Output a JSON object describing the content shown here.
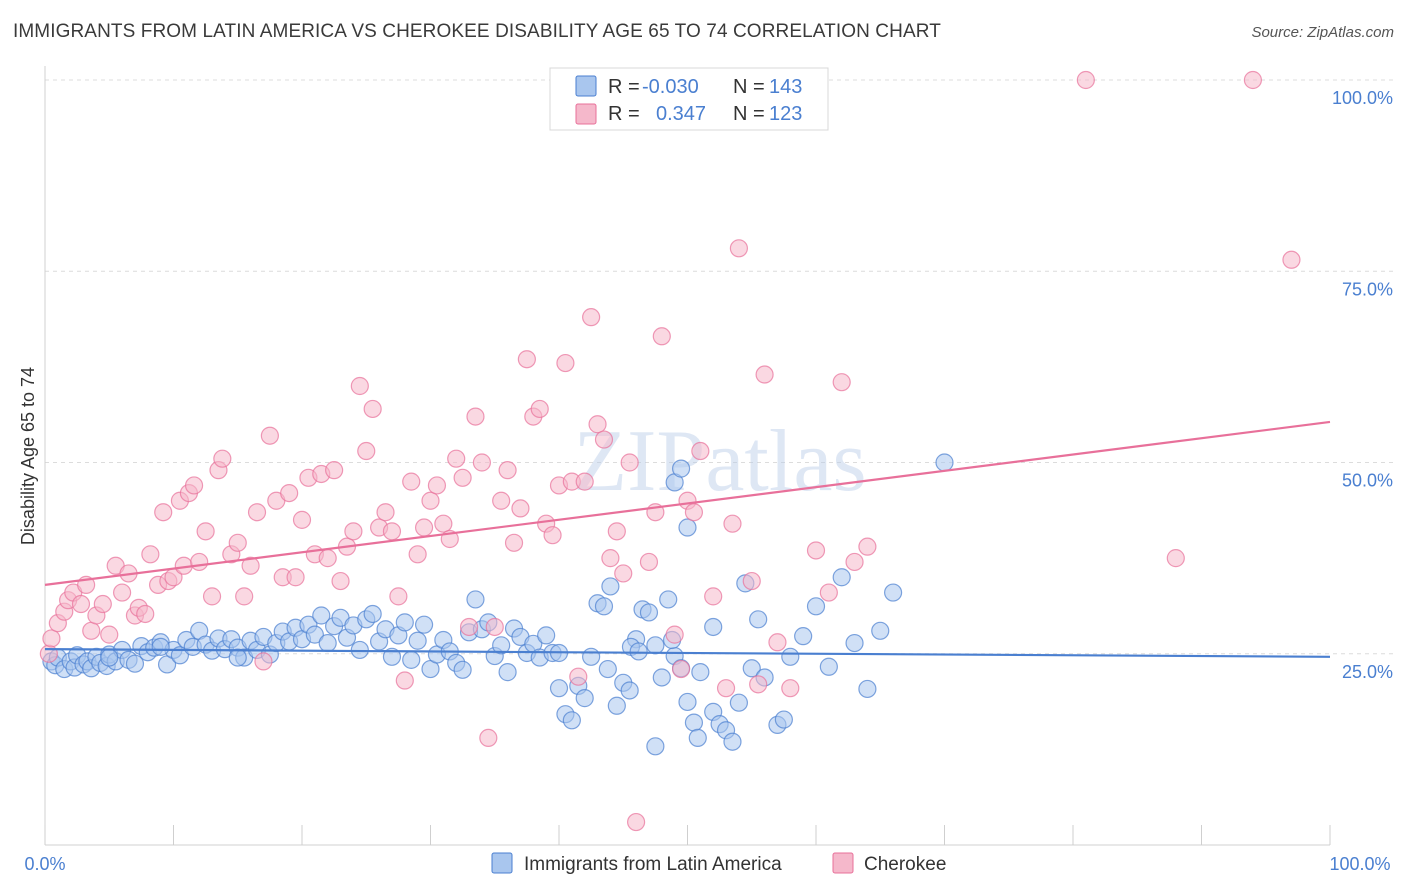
{
  "title": "IMMIGRANTS FROM LATIN AMERICA VS CHEROKEE DISABILITY AGE 65 TO 74 CORRELATION CHART",
  "source": "Source: ZipAtlas.com",
  "watermark": "ZIPatlas",
  "colors": {
    "blue": "#4a7fd0",
    "blue_fill": "#a9c6ee",
    "pink": "#e8709a",
    "pink_fill": "#f5b8cb",
    "grid": "#dddddd",
    "axis_text": "#4a7fd0"
  },
  "legend": {
    "rows": [
      {
        "r_label": "R =",
        "r_value": "-0.030",
        "n_label": "N =",
        "n_value": "143"
      },
      {
        "r_label": "R =",
        "r_value": "0.347",
        "n_label": "N =",
        "n_value": "123"
      }
    ]
  },
  "chart_data": {
    "type": "scatter",
    "ylabel": "Disability Age 65 to 74",
    "x_tick_labels": [
      "0.0%",
      "100.0%"
    ],
    "y_tick_labels": [
      "25.0%",
      "50.0%",
      "75.0%",
      "100.0%"
    ],
    "xlim": [
      0,
      100
    ],
    "ylim": [
      0,
      100
    ],
    "grid": true,
    "series": [
      {
        "name": "Immigrants from Latin America",
        "color": "#4a7fd0",
        "trend": {
          "x": [
            0,
            100
          ],
          "y": [
            25.6,
            24.6
          ]
        },
        "points": [
          [
            0.5,
            24
          ],
          [
            0.8,
            23.5
          ],
          [
            1,
            24.5
          ],
          [
            1.5,
            23
          ],
          [
            2,
            24
          ],
          [
            2.3,
            23.2
          ],
          [
            2.5,
            24.8
          ],
          [
            3,
            23.6
          ],
          [
            3.3,
            24
          ],
          [
            3.6,
            23.1
          ],
          [
            4,
            24.6
          ],
          [
            4.3,
            23.8
          ],
          [
            4.8,
            23.4
          ],
          [
            5,
            24.9
          ],
          [
            5.5,
            24
          ],
          [
            6,
            25.5
          ],
          [
            6.5,
            24.2
          ],
          [
            7,
            23.7
          ],
          [
            7.5,
            26
          ],
          [
            8,
            25.2
          ],
          [
            8.5,
            25.8
          ],
          [
            9,
            26.5
          ],
          [
            9.5,
            23.6
          ],
          [
            10,
            25.5
          ],
          [
            10.5,
            24.8
          ],
          [
            11,
            26.8
          ],
          [
            11.5,
            25.9
          ],
          [
            12,
            28
          ],
          [
            12.5,
            26.2
          ],
          [
            13,
            25.4
          ],
          [
            13.5,
            27
          ],
          [
            14,
            25.6
          ],
          [
            14.5,
            26.9
          ],
          [
            15,
            25.8
          ],
          [
            15.5,
            24.5
          ],
          [
            16,
            26.7
          ],
          [
            16.5,
            25.5
          ],
          [
            17,
            27.2
          ],
          [
            17.5,
            24.9
          ],
          [
            18,
            26.4
          ],
          [
            18.5,
            27.9
          ],
          [
            19,
            26.6
          ],
          [
            19.5,
            28.4
          ],
          [
            20,
            26.9
          ],
          [
            20.5,
            28.8
          ],
          [
            21,
            27.5
          ],
          [
            21.5,
            30
          ],
          [
            22,
            26.4
          ],
          [
            22.5,
            28.6
          ],
          [
            23,
            29.7
          ],
          [
            23.5,
            27.1
          ],
          [
            24,
            28.7
          ],
          [
            24.5,
            25.5
          ],
          [
            25,
            29.5
          ],
          [
            25.5,
            30.2
          ],
          [
            26,
            26.6
          ],
          [
            26.5,
            28.2
          ],
          [
            27,
            24.6
          ],
          [
            27.5,
            27.4
          ],
          [
            28,
            29.1
          ],
          [
            28.5,
            24.2
          ],
          [
            29,
            26.7
          ],
          [
            29.5,
            28.8
          ],
          [
            30,
            23
          ],
          [
            30.5,
            24.9
          ],
          [
            31,
            26.8
          ],
          [
            31.5,
            25.3
          ],
          [
            32,
            23.8
          ],
          [
            32.5,
            22.9
          ],
          [
            33,
            27.8
          ],
          [
            33.5,
            32.1
          ],
          [
            34,
            28.2
          ],
          [
            34.5,
            29.1
          ],
          [
            35,
            24.7
          ],
          [
            35.5,
            26.1
          ],
          [
            36,
            22.6
          ],
          [
            36.5,
            28.3
          ],
          [
            37,
            27.2
          ],
          [
            37.5,
            25.1
          ],
          [
            38,
            26.3
          ],
          [
            38.5,
            24.5
          ],
          [
            39,
            27.4
          ],
          [
            39.5,
            25.1
          ],
          [
            40,
            20.5
          ],
          [
            40.5,
            17.1
          ],
          [
            41,
            16.3
          ],
          [
            41.5,
            20.8
          ],
          [
            42,
            19.2
          ],
          [
            42.5,
            24.6
          ],
          [
            43,
            31.6
          ],
          [
            43.5,
            31.2
          ],
          [
            44,
            33.8
          ],
          [
            44.5,
            18.2
          ],
          [
            45,
            21.2
          ],
          [
            45.5,
            20.2
          ],
          [
            46,
            26.9
          ],
          [
            46.5,
            30.8
          ],
          [
            47,
            30.4
          ],
          [
            47.5,
            12.9
          ],
          [
            48,
            21.9
          ],
          [
            48.5,
            32.1
          ],
          [
            49,
            24.7
          ],
          [
            49.5,
            23.1
          ],
          [
            50,
            18.7
          ],
          [
            50.5,
            16
          ],
          [
            50.8,
            14
          ],
          [
            51,
            22.6
          ],
          [
            52,
            17.4
          ],
          [
            52.5,
            15.8
          ],
          [
            53,
            15
          ],
          [
            53.5,
            13.5
          ],
          [
            54,
            18.6
          ],
          [
            55,
            23.1
          ],
          [
            55.5,
            29.5
          ],
          [
            56,
            21.9
          ],
          [
            57,
            15.7
          ],
          [
            57.5,
            16.4
          ],
          [
            58,
            24.6
          ],
          [
            59,
            27.3
          ],
          [
            60,
            31.2
          ],
          [
            61,
            23.3
          ],
          [
            62,
            35
          ],
          [
            63,
            26.4
          ],
          [
            64,
            20.4
          ],
          [
            65,
            28
          ],
          [
            66,
            33
          ],
          [
            70,
            50
          ],
          [
            54.5,
            34.2
          ],
          [
            49,
            47.4
          ],
          [
            49.5,
            49.2
          ],
          [
            50,
            41.5
          ],
          [
            40,
            25.1
          ],
          [
            43.8,
            23
          ],
          [
            52,
            28.5
          ],
          [
            45.6,
            25.9
          ],
          [
            46.2,
            25.3
          ],
          [
            47.5,
            26.1
          ],
          [
            48.8,
            26.8
          ],
          [
            5,
            24.5
          ],
          [
            9,
            25.9
          ],
          [
            15,
            24.5
          ]
        ]
      },
      {
        "name": "Cherokee",
        "color": "#e8709a",
        "trend": {
          "x": [
            0,
            100
          ],
          "y": [
            34,
            55.3
          ]
        },
        "points": [
          [
            0.3,
            25
          ],
          [
            0.5,
            27
          ],
          [
            1,
            29
          ],
          [
            1.5,
            30.5
          ],
          [
            1.8,
            32
          ],
          [
            2.2,
            33
          ],
          [
            2.8,
            31.5
          ],
          [
            3.2,
            34
          ],
          [
            3.6,
            28
          ],
          [
            4,
            30
          ],
          [
            4.5,
            31.5
          ],
          [
            5,
            27.5
          ],
          [
            5.5,
            36.5
          ],
          [
            6,
            33
          ],
          [
            6.5,
            35.5
          ],
          [
            7,
            30
          ],
          [
            7.3,
            31
          ],
          [
            7.8,
            30.2
          ],
          [
            8.2,
            38
          ],
          [
            8.8,
            34
          ],
          [
            9.2,
            43.5
          ],
          [
            9.6,
            34.5
          ],
          [
            10,
            35
          ],
          [
            10.5,
            45
          ],
          [
            10.8,
            36.5
          ],
          [
            11.2,
            46
          ],
          [
            11.6,
            47
          ],
          [
            12,
            37
          ],
          [
            12.5,
            41
          ],
          [
            13,
            32.5
          ],
          [
            13.5,
            49
          ],
          [
            13.8,
            50.5
          ],
          [
            14.5,
            38
          ],
          [
            15,
            39.5
          ],
          [
            15.5,
            32.5
          ],
          [
            16,
            36.5
          ],
          [
            16.5,
            43.5
          ],
          [
            17,
            24
          ],
          [
            17.5,
            53.5
          ],
          [
            18,
            45
          ],
          [
            18.5,
            35
          ],
          [
            19,
            46
          ],
          [
            19.5,
            35
          ],
          [
            20,
            42.5
          ],
          [
            20.5,
            48
          ],
          [
            21,
            38
          ],
          [
            21.5,
            48.5
          ],
          [
            22,
            37.5
          ],
          [
            22.5,
            49
          ],
          [
            23,
            34.5
          ],
          [
            23.5,
            39
          ],
          [
            24,
            41
          ],
          [
            24.5,
            60
          ],
          [
            25,
            51.5
          ],
          [
            25.5,
            57
          ],
          [
            26,
            41.5
          ],
          [
            26.5,
            43.5
          ],
          [
            27,
            41
          ],
          [
            27.5,
            32.5
          ],
          [
            28,
            21.5
          ],
          [
            28.5,
            47.5
          ],
          [
            29,
            38
          ],
          [
            29.5,
            41.5
          ],
          [
            30,
            45
          ],
          [
            30.5,
            47
          ],
          [
            31,
            42
          ],
          [
            31.5,
            40
          ],
          [
            32,
            50.5
          ],
          [
            32.5,
            48
          ],
          [
            33,
            28.5
          ],
          [
            33.5,
            56
          ],
          [
            34,
            50
          ],
          [
            34.5,
            14
          ],
          [
            35,
            28.5
          ],
          [
            35.5,
            45
          ],
          [
            36,
            49
          ],
          [
            36.5,
            39.5
          ],
          [
            37,
            44
          ],
          [
            37.5,
            63.5
          ],
          [
            38,
            56
          ],
          [
            38.5,
            57
          ],
          [
            39,
            42
          ],
          [
            39.5,
            40.5
          ],
          [
            40,
            47
          ],
          [
            40.5,
            63
          ],
          [
            41,
            47.5
          ],
          [
            41.5,
            22
          ],
          [
            42,
            47.5
          ],
          [
            42.5,
            69
          ],
          [
            43,
            55
          ],
          [
            43.5,
            53
          ],
          [
            44,
            37.5
          ],
          [
            44.5,
            41
          ],
          [
            45,
            35.5
          ],
          [
            45.5,
            50
          ],
          [
            46,
            3
          ],
          [
            47,
            37
          ],
          [
            47.5,
            43.5
          ],
          [
            48,
            66.5
          ],
          [
            49,
            27.5
          ],
          [
            49.5,
            23
          ],
          [
            50,
            45
          ],
          [
            50.5,
            43.5
          ],
          [
            51,
            51.5
          ],
          [
            52,
            32.5
          ],
          [
            53,
            20.5
          ],
          [
            53.5,
            42
          ],
          [
            54,
            78
          ],
          [
            55,
            34.5
          ],
          [
            55.5,
            21
          ],
          [
            56,
            61.5
          ],
          [
            57,
            26.5
          ],
          [
            58,
            20.5
          ],
          [
            60,
            38.5
          ],
          [
            61,
            33
          ],
          [
            62,
            60.5
          ],
          [
            63,
            37
          ],
          [
            64,
            39
          ],
          [
            81,
            100
          ],
          [
            94,
            100
          ],
          [
            97,
            76.5
          ],
          [
            88,
            37.5
          ]
        ]
      }
    ]
  },
  "bottom_legend": [
    "Immigrants from Latin America",
    "Cherokee"
  ]
}
